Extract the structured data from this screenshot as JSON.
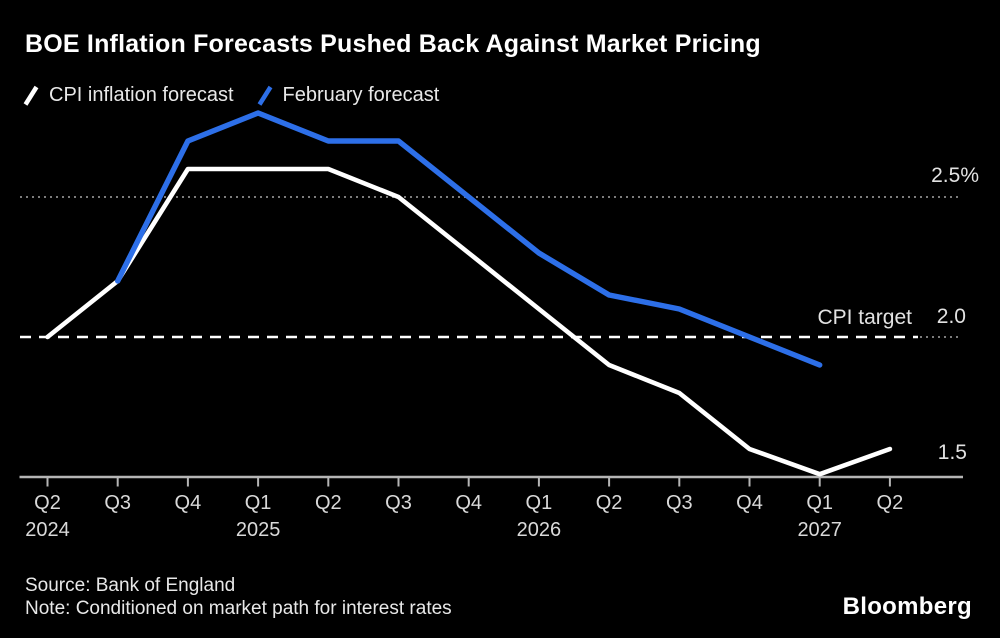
{
  "header": {
    "title": "BOE Inflation Forecasts Pushed Back Against Market Pricing"
  },
  "legend": {
    "items": [
      {
        "label": "CPI inflation forecast",
        "color": "#ffffff"
      },
      {
        "label": "February forecast",
        "color": "#2d6fe8"
      }
    ]
  },
  "chart_data": {
    "type": "line",
    "title": "BOE Inflation Forecasts Pushed Back Against Market Pricing",
    "xlabel": "",
    "ylabel": "",
    "ylim": [
      1.4,
      2.9
    ],
    "legend_position": "top-left",
    "x_categories": [
      "Q2",
      "Q3",
      "Q4",
      "Q1",
      "Q2",
      "Q3",
      "Q4",
      "Q1",
      "Q2",
      "Q3",
      "Q4",
      "Q1",
      "Q2"
    ],
    "year_labels": [
      {
        "index": 0,
        "text": "2024"
      },
      {
        "index": 3,
        "text": "2025"
      },
      {
        "index": 7,
        "text": "2026"
      },
      {
        "index": 11,
        "text": "2027"
      }
    ],
    "series": [
      {
        "name": "CPI inflation forecast",
        "color": "#ffffff",
        "start_index": 0,
        "values": [
          2.0,
          2.2,
          2.6,
          2.6,
          2.6,
          2.5,
          2.3,
          2.1,
          1.9,
          1.8,
          1.6,
          1.51,
          1.6
        ]
      },
      {
        "name": "February forecast",
        "color": "#2d6fe8",
        "start_index": 1,
        "values": [
          2.2,
          2.7,
          2.8,
          2.7,
          2.7,
          2.5,
          2.3,
          2.15,
          2.1,
          2.0,
          1.9
        ]
      }
    ],
    "reference_lines": [
      {
        "value": 2.5,
        "style": "dotted",
        "label": "2.5%",
        "annotation": ""
      },
      {
        "value": 2.0,
        "style": "dashed",
        "label": "2.0",
        "annotation": "CPI target"
      }
    ],
    "y_axis": {
      "min": 1.5,
      "max": 2.9,
      "baseline_value": 1.5,
      "baseline_label": "1.5"
    }
  },
  "footer": {
    "source": "Source: Bank of England",
    "note": "Note: Conditioned on market path for interest rates",
    "brand": "Bloomberg"
  }
}
